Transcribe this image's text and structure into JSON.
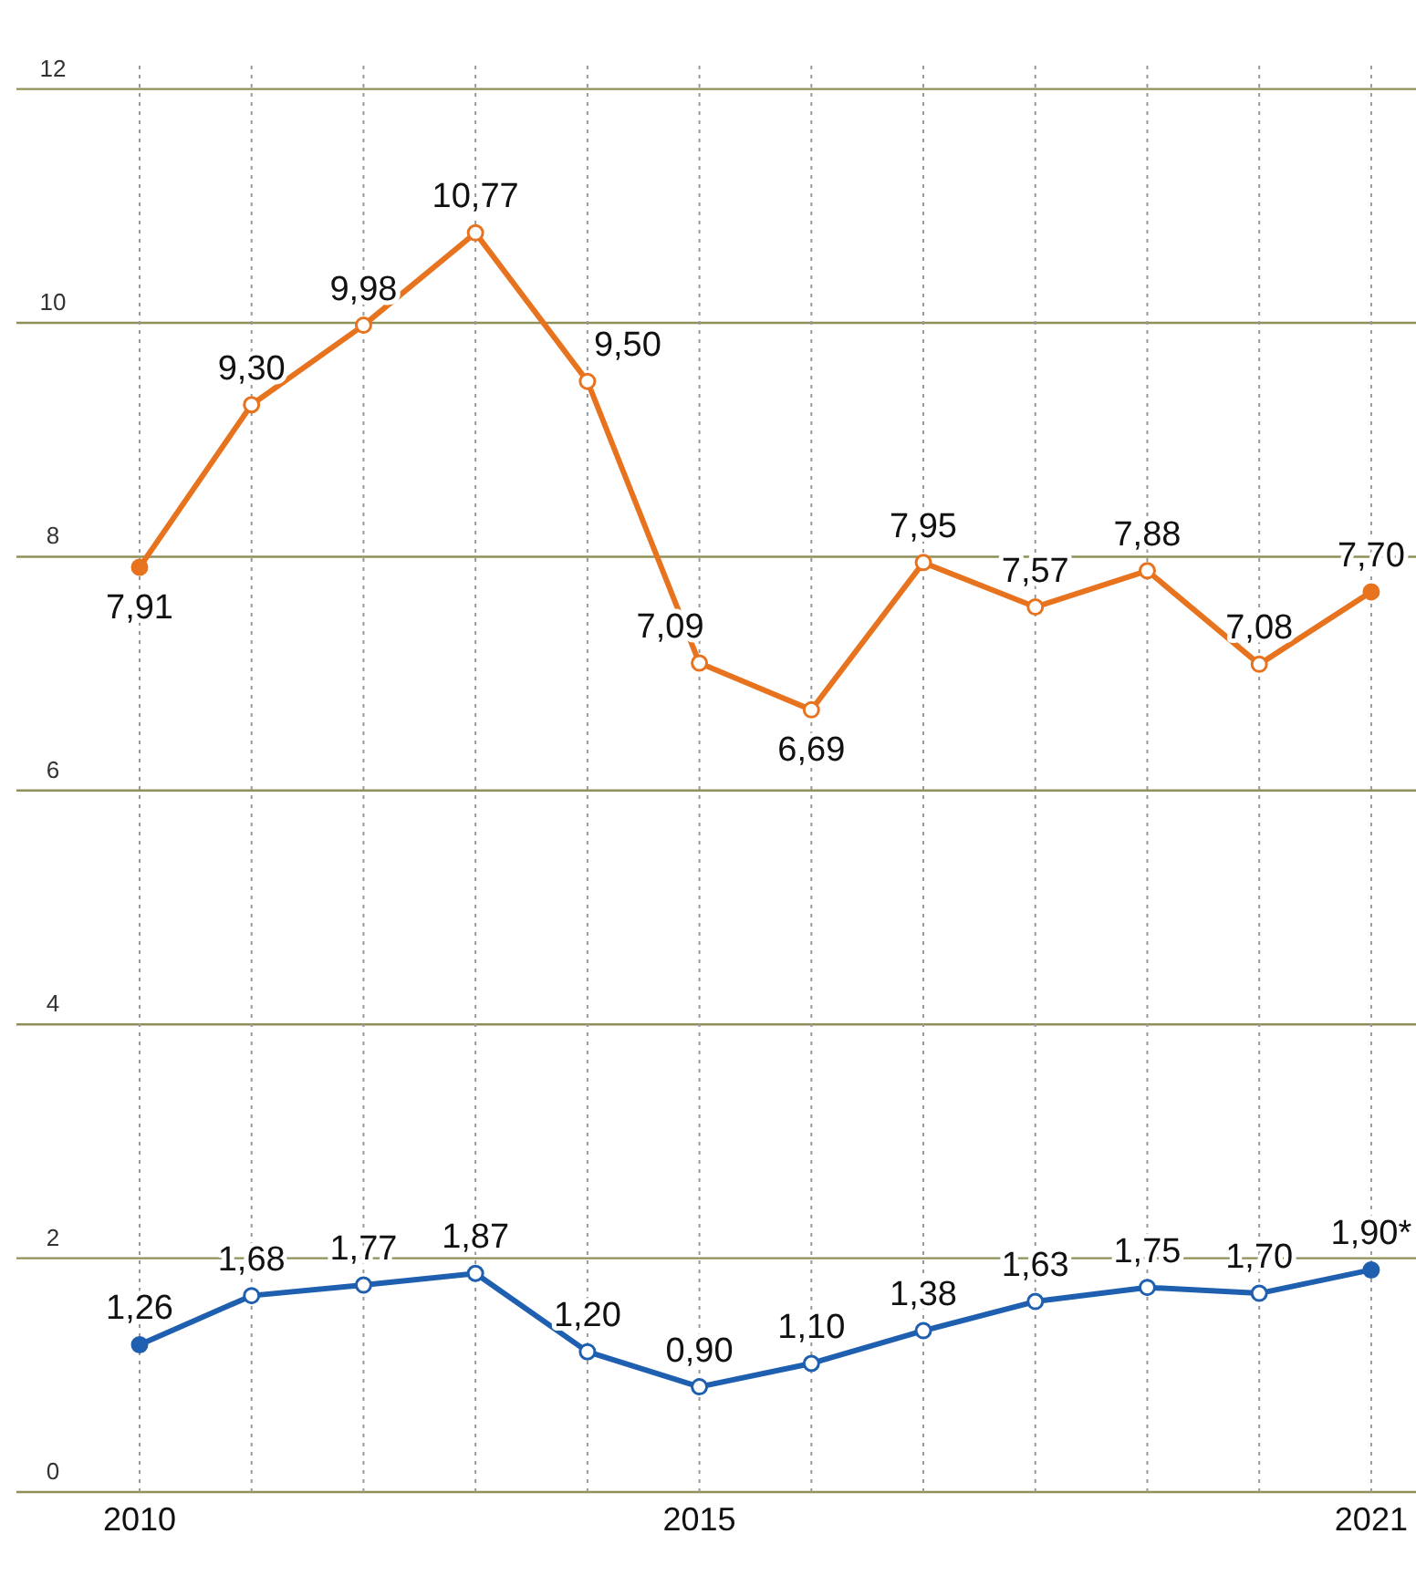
{
  "chart_data": {
    "type": "line",
    "x": [
      2010,
      2011,
      2012,
      2013,
      2014,
      2015,
      2016,
      2017,
      2018,
      2019,
      2020,
      2021
    ],
    "series": [
      {
        "color": "#e8731f",
        "values": [
          7.91,
          9.3,
          9.98,
          10.77,
          9.5,
          7.09,
          6.69,
          7.95,
          7.57,
          7.88,
          7.08,
          7.7
        ],
        "value_labels": [
          "7,91",
          "9,30",
          "9,98",
          "10,77",
          "9,50",
          "7,09",
          "6,69",
          "7,95",
          "7,57",
          "7,88",
          "7,08",
          "7,70"
        ]
      },
      {
        "color": "#1f5fb0",
        "values": [
          1.26,
          1.68,
          1.77,
          1.87,
          1.2,
          0.9,
          1.1,
          1.38,
          1.63,
          1.75,
          1.7,
          1.9
        ],
        "value_labels": [
          "1,26",
          "1,68",
          "1,77",
          "1,87",
          "1,20",
          "0,90",
          "1,10",
          "1,38",
          "1,63",
          "1,75",
          "1,70",
          "1,90*"
        ]
      }
    ],
    "xlim": [
      2008.9,
      2021.4
    ],
    "xticks": [
      2010,
      {
        "value": 2011,
        "label": null
      },
      {
        "value": 2012,
        "label": null
      },
      {
        "value": 2013,
        "label": null
      },
      {
        "value": 2014,
        "label": null
      },
      2015,
      {
        "value": 2016,
        "label": null
      },
      {
        "value": 2017,
        "label": null
      },
      {
        "value": 2018,
        "label": null
      },
      {
        "value": 2019,
        "label": null
      },
      {
        "value": 2020,
        "label": null
      },
      2021
    ],
    "ylim": [
      0,
      12.2
    ],
    "yticks": [
      0,
      2,
      4,
      6,
      8,
      10,
      12
    ],
    "grid": true,
    "marker": "circle",
    "line_style": "solid"
  }
}
